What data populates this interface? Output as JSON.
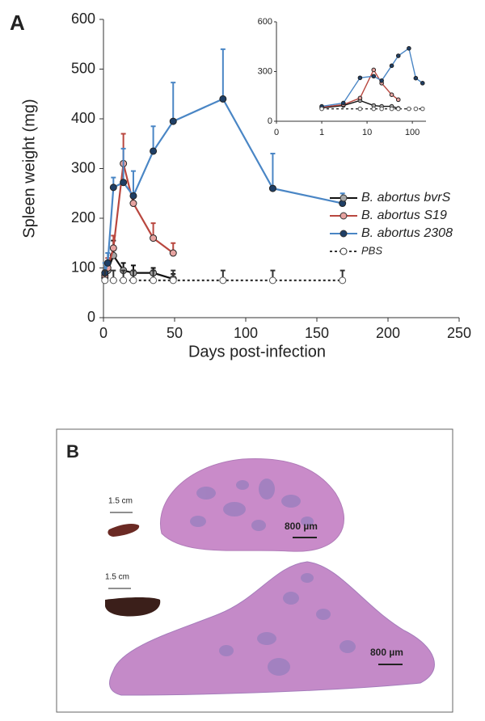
{
  "panel_a_label": "A",
  "chart_data": {
    "type": "line",
    "xlabel": "Days post-infection",
    "ylabel": "Spleen weight (mg)",
    "xlim": [
      0,
      250
    ],
    "xticks": [
      0,
      50,
      100,
      150,
      200,
      250
    ],
    "ylim": [
      0,
      600
    ],
    "yticks": [
      0,
      100,
      200,
      300,
      400,
      500,
      600
    ],
    "series": [
      {
        "name": "B. abortus bvrS",
        "color": "#111111",
        "marker_color": "#a6a6a6",
        "x": [
          1,
          3,
          7,
          14,
          21,
          35,
          49
        ],
        "values": [
          80,
          95,
          125,
          95,
          90,
          90,
          78
        ],
        "errors": [
          10,
          10,
          30,
          15,
          15,
          10,
          10
        ]
      },
      {
        "name": "B. abortus S19",
        "color": "#b9473f",
        "marker_color": "#e6a3a0",
        "x": [
          1,
          3,
          7,
          14,
          21,
          35,
          49
        ],
        "values": [
          85,
          100,
          140,
          310,
          230,
          160,
          130
        ],
        "errors": [
          10,
          20,
          25,
          60,
          15,
          30,
          20
        ]
      },
      {
        "name": "B. abortus 2308",
        "color": "#4a86c5",
        "marker_color": "#1f3f66",
        "x": [
          1,
          3,
          7,
          14,
          21,
          35,
          49,
          84,
          119,
          168
        ],
        "values": [
          90,
          110,
          262,
          272,
          245,
          335,
          395,
          440,
          260,
          230
        ],
        "errors": [
          20,
          20,
          20,
          68,
          50,
          50,
          78,
          100,
          70,
          20
        ]
      },
      {
        "name": "PBS",
        "color": "#333333",
        "marker_color": "#ffffff",
        "line_style": "dashed",
        "x": [
          1,
          7,
          14,
          21,
          35,
          49,
          84,
          119,
          168
        ],
        "values": [
          75,
          75,
          75,
          75,
          75,
          75,
          75,
          75,
          75
        ],
        "errors": [
          20,
          20,
          20,
          20,
          20,
          20,
          20,
          20,
          20
        ]
      }
    ],
    "inset": {
      "xscale": "log",
      "xlim": [
        0.1,
        200
      ],
      "xticks": [
        {
          "value": 0.1,
          "label": "0"
        },
        1,
        10,
        100
      ],
      "ylim": [
        0,
        600
      ],
      "yticks": [
        0,
        300,
        600
      ]
    }
  },
  "panel_b": {
    "label": "B",
    "scale_labels": [
      "1.5 cm",
      "800 µm",
      "1.5 cm",
      "800 µm"
    ]
  }
}
